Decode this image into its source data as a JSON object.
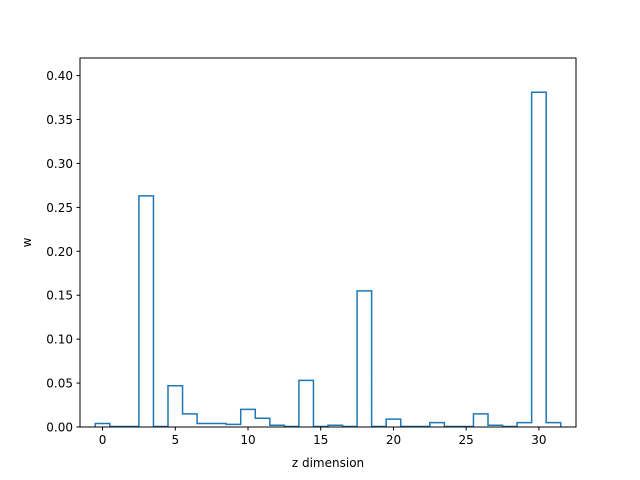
{
  "chart_data": {
    "type": "bar",
    "style": "step-histogram",
    "xlabel": "z dimension",
    "ylabel": "w",
    "xlim": [
      -1.55,
      32.55
    ],
    "ylim": [
      0,
      0.42
    ],
    "xticks": [
      0,
      5,
      10,
      15,
      20,
      25,
      30
    ],
    "yticks": [
      0.0,
      0.05,
      0.1,
      0.15,
      0.2,
      0.25,
      0.3,
      0.35,
      0.4
    ],
    "x": [
      0,
      1,
      2,
      3,
      4,
      5,
      6,
      7,
      8,
      9,
      10,
      11,
      12,
      13,
      14,
      15,
      16,
      17,
      18,
      19,
      20,
      21,
      22,
      23,
      24,
      25,
      26,
      27,
      28,
      29,
      30,
      31
    ],
    "values": [
      0.004,
      0.0005,
      0.0005,
      0.263,
      0.0005,
      0.047,
      0.015,
      0.004,
      0.004,
      0.003,
      0.02,
      0.01,
      0.002,
      0.0005,
      0.053,
      0.0005,
      0.002,
      0.0005,
      0.155,
      0.0005,
      0.009,
      0.0005,
      0.0005,
      0.005,
      0.0005,
      0.0005,
      0.015,
      0.002,
      0.0005,
      0.005,
      0.381,
      0.005
    ],
    "color": "#1f77b4",
    "grid": false
  }
}
